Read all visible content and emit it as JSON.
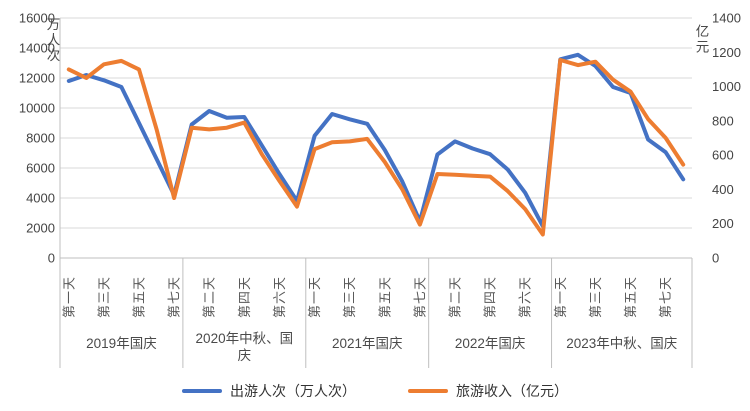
{
  "chart_data": {
    "type": "line",
    "title": "",
    "left_axis": {
      "title": "万人次",
      "min": 0,
      "max": 16000,
      "step": 2000,
      "ticks": [
        0,
        2000,
        4000,
        6000,
        8000,
        10000,
        12000,
        14000,
        16000
      ]
    },
    "right_axis": {
      "title": "亿元",
      "min": 0,
      "max": 1400,
      "step": 200,
      "ticks": [
        0,
        200,
        400,
        600,
        800,
        1000,
        1200,
        1400
      ]
    },
    "grid": true,
    "legend_position": "bottom",
    "groups": [
      {
        "label": "2019年国庆",
        "label_lines": [
          "2019年国庆"
        ],
        "n": 7,
        "day_labels": [
          "第一天",
          "第三天",
          "第五天",
          "第七天"
        ],
        "day_label_positions": [
          0,
          2,
          4,
          6
        ]
      },
      {
        "label": "2020年中秋、国庆",
        "label_lines": [
          "2020年中秋、国",
          "庆"
        ],
        "n": 7,
        "day_labels": [
          "第二天",
          "第四天",
          "第六天"
        ],
        "day_label_positions": [
          1,
          3,
          5
        ]
      },
      {
        "label": "2021年国庆",
        "label_lines": [
          "2021年国庆"
        ],
        "n": 7,
        "day_labels": [
          "第一天",
          "第三天",
          "第五天",
          "第七天"
        ],
        "day_label_positions": [
          0,
          2,
          4,
          6
        ]
      },
      {
        "label": "2022年国庆",
        "label_lines": [
          "2022年国庆"
        ],
        "n": 7,
        "day_labels": [
          "第二天",
          "第四天",
          "第六天"
        ],
        "day_label_positions": [
          1,
          3,
          5
        ]
      },
      {
        "label": "2023年中秋、国庆",
        "label_lines": [
          "2023年中秋、国庆"
        ],
        "n": 8,
        "day_labels": [
          "第一天",
          "第三天",
          "第五天",
          "第七天"
        ],
        "day_label_positions": [
          0,
          2,
          4,
          6
        ]
      }
    ],
    "series": [
      {
        "name": "出游人次（万人次）",
        "axis": "left",
        "color": "#4472C4",
        "values_by_group": [
          [
            11800,
            12200,
            11850,
            11400,
            9000,
            6600,
            4200
          ],
          [
            8900,
            9800,
            9350,
            9400,
            7500,
            5600,
            3800
          ],
          [
            8150,
            9600,
            9250,
            8950,
            7200,
            5100,
            2450
          ],
          [
            6900,
            7770,
            7300,
            6920,
            5900,
            4350,
            2120
          ],
          [
            13250,
            13550,
            12800,
            11400,
            11000,
            7900,
            7050,
            5250
          ]
        ]
      },
      {
        "name": "旅游收入（亿元）",
        "axis": "right",
        "color": "#ED7D31",
        "values_by_group": [
          [
            1100,
            1050,
            1130,
            1150,
            1100,
            750,
            350
          ],
          [
            760,
            750,
            760,
            790,
            605,
            450,
            300
          ],
          [
            635,
            675,
            680,
            695,
            560,
            400,
            195
          ],
          [
            490,
            486,
            480,
            475,
            390,
            285,
            137
          ],
          [
            1155,
            1125,
            1145,
            1040,
            970,
            810,
            700,
            545
          ]
        ]
      }
    ],
    "colors": {
      "gridline": "#D9D9D9",
      "axis_line": "#BFBFBF",
      "tick_text": "#444444",
      "legend_text": "#333333"
    }
  }
}
